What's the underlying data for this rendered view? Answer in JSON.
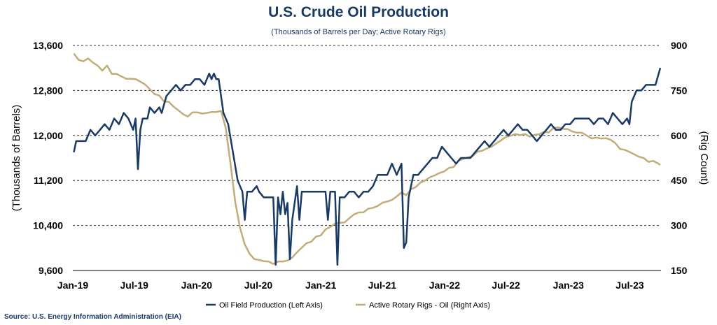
{
  "chart_data": {
    "type": "line",
    "title": "U.S. Crude Oil Production",
    "subtitle": "(Thousands of Barrels per Day; Active Rotary Rigs)",
    "ylabel_left": "(Thousands of Barrels)",
    "ylabel_right": "(Rig Count)",
    "ylim_left": [
      9600,
      13600
    ],
    "ylim_right": [
      150,
      900
    ],
    "yticks_left": [
      "13,600",
      "12,800",
      "12,000",
      "11,200",
      "10,400",
      "9,600"
    ],
    "yticks_right": [
      "900",
      "750",
      "600",
      "450",
      "300",
      "150"
    ],
    "xticks": [
      "Jan-19",
      "Jul-19",
      "Jan-20",
      "Jul-20",
      "Jan-21",
      "Jul-21",
      "Jan-22",
      "Jul-22",
      "Jan-23",
      "Jul-23"
    ],
    "grid": "horizontal dashed",
    "legend_position": "bottom",
    "source": "Source: U.S. Energy Information Administration (EIA)",
    "series": [
      {
        "name": "Oil Field Production (Left Axis)",
        "axis": "left",
        "color": "#1a3a66",
        "points": [
          [
            "2019-01-04",
            11700
          ],
          [
            "2019-01-11",
            11900
          ],
          [
            "2019-01-25",
            11900
          ],
          [
            "2019-02-08",
            11900
          ],
          [
            "2019-02-22",
            12100
          ],
          [
            "2019-03-08",
            12000
          ],
          [
            "2019-03-22",
            12100
          ],
          [
            "2019-04-05",
            12200
          ],
          [
            "2019-04-19",
            12100
          ],
          [
            "2019-05-03",
            12300
          ],
          [
            "2019-05-17",
            12200
          ],
          [
            "2019-05-31",
            12400
          ],
          [
            "2019-06-14",
            12300
          ],
          [
            "2019-06-28",
            12100
          ],
          [
            "2019-07-05",
            12300
          ],
          [
            "2019-07-12",
            11400
          ],
          [
            "2019-07-19",
            12100
          ],
          [
            "2019-07-26",
            12300
          ],
          [
            "2019-08-09",
            12300
          ],
          [
            "2019-08-16",
            12500
          ],
          [
            "2019-08-30",
            12400
          ],
          [
            "2019-09-13",
            12500
          ],
          [
            "2019-09-20",
            12400
          ],
          [
            "2019-10-04",
            12700
          ],
          [
            "2019-10-18",
            12800
          ],
          [
            "2019-11-01",
            12900
          ],
          [
            "2019-11-15",
            12800
          ],
          [
            "2019-11-29",
            12900
          ],
          [
            "2019-12-13",
            12900
          ],
          [
            "2019-12-27",
            13000
          ],
          [
            "2020-01-10",
            13000
          ],
          [
            "2020-01-24",
            12900
          ],
          [
            "2020-02-07",
            13100
          ],
          [
            "2020-02-14",
            13000
          ],
          [
            "2020-02-21",
            13100
          ],
          [
            "2020-02-28",
            13000
          ],
          [
            "2020-03-06",
            13000
          ],
          [
            "2020-03-20",
            12400
          ],
          [
            "2020-04-03",
            12200
          ],
          [
            "2020-04-17",
            11700
          ],
          [
            "2020-05-01",
            11200
          ],
          [
            "2020-05-15",
            11000
          ],
          [
            "2020-05-22",
            10500
          ],
          [
            "2020-05-29",
            11000
          ],
          [
            "2020-06-12",
            11000
          ],
          [
            "2020-06-26",
            11100
          ],
          [
            "2020-07-03",
            11000
          ],
          [
            "2020-07-17",
            10900
          ],
          [
            "2020-07-31",
            10900
          ],
          [
            "2020-08-14",
            10900
          ],
          [
            "2020-08-21",
            9700
          ],
          [
            "2020-08-28",
            10900
          ],
          [
            "2020-09-04",
            10600
          ],
          [
            "2020-09-11",
            11000
          ],
          [
            "2020-09-18",
            10600
          ],
          [
            "2020-09-25",
            10800
          ],
          [
            "2020-10-02",
            9800
          ],
          [
            "2020-10-09",
            10500
          ],
          [
            "2020-10-16",
            10800
          ],
          [
            "2020-10-23",
            11100
          ],
          [
            "2020-10-30",
            10500
          ],
          [
            "2020-11-06",
            11000
          ],
          [
            "2020-11-20",
            11000
          ],
          [
            "2020-12-04",
            11000
          ],
          [
            "2020-12-18",
            11000
          ],
          [
            "2021-01-01",
            11000
          ],
          [
            "2021-01-15",
            11000
          ],
          [
            "2021-01-22",
            10500
          ],
          [
            "2021-01-29",
            11000
          ],
          [
            "2021-02-12",
            11000
          ],
          [
            "2021-02-19",
            9700
          ],
          [
            "2021-02-26",
            10900
          ],
          [
            "2021-03-12",
            10900
          ],
          [
            "2021-03-26",
            11000
          ],
          [
            "2021-04-09",
            11000
          ],
          [
            "2021-04-23",
            10900
          ],
          [
            "2021-05-07",
            11000
          ],
          [
            "2021-05-21",
            11000
          ],
          [
            "2021-06-04",
            11100
          ],
          [
            "2021-06-18",
            11300
          ],
          [
            "2021-07-02",
            11300
          ],
          [
            "2021-07-16",
            11300
          ],
          [
            "2021-07-30",
            11500
          ],
          [
            "2021-08-13",
            11300
          ],
          [
            "2021-08-27",
            11500
          ],
          [
            "2021-09-03",
            10000
          ],
          [
            "2021-09-10",
            10100
          ],
          [
            "2021-09-17",
            10900
          ],
          [
            "2021-10-01",
            11300
          ],
          [
            "2021-10-15",
            11300
          ],
          [
            "2021-10-29",
            11400
          ],
          [
            "2021-11-12",
            11500
          ],
          [
            "2021-11-26",
            11600
          ],
          [
            "2021-12-10",
            11600
          ],
          [
            "2021-12-24",
            11800
          ],
          [
            "2022-01-07",
            11700
          ],
          [
            "2022-01-21",
            11600
          ],
          [
            "2022-02-04",
            11500
          ],
          [
            "2022-02-18",
            11600
          ],
          [
            "2022-03-04",
            11600
          ],
          [
            "2022-03-18",
            11600
          ],
          [
            "2022-04-01",
            11700
          ],
          [
            "2022-04-15",
            11800
          ],
          [
            "2022-04-29",
            11900
          ],
          [
            "2022-05-13",
            11800
          ],
          [
            "2022-05-27",
            11900
          ],
          [
            "2022-06-10",
            12000
          ],
          [
            "2022-06-24",
            12100
          ],
          [
            "2022-07-08",
            12000
          ],
          [
            "2022-07-22",
            12100
          ],
          [
            "2022-08-05",
            12200
          ],
          [
            "2022-08-19",
            12100
          ],
          [
            "2022-09-02",
            12100
          ],
          [
            "2022-09-16",
            12000
          ],
          [
            "2022-09-30",
            11900
          ],
          [
            "2022-10-14",
            12000
          ],
          [
            "2022-10-28",
            12100
          ],
          [
            "2022-11-11",
            12200
          ],
          [
            "2022-11-25",
            12100
          ],
          [
            "2022-12-09",
            12100
          ],
          [
            "2022-12-23",
            12200
          ],
          [
            "2023-01-06",
            12200
          ],
          [
            "2023-01-20",
            12300
          ],
          [
            "2023-02-03",
            12300
          ],
          [
            "2023-02-17",
            12300
          ],
          [
            "2023-03-03",
            12300
          ],
          [
            "2023-03-17",
            12200
          ],
          [
            "2023-03-31",
            12300
          ],
          [
            "2023-04-14",
            12300
          ],
          [
            "2023-04-28",
            12200
          ],
          [
            "2023-05-12",
            12400
          ],
          [
            "2023-05-26",
            12300
          ],
          [
            "2023-06-09",
            12200
          ],
          [
            "2023-06-23",
            12300
          ],
          [
            "2023-06-30",
            12200
          ],
          [
            "2023-07-07",
            12600
          ],
          [
            "2023-07-21",
            12800
          ],
          [
            "2023-08-04",
            12800
          ],
          [
            "2023-08-18",
            12900
          ],
          [
            "2023-09-01",
            12900
          ],
          [
            "2023-09-15",
            12900
          ],
          [
            "2023-09-29",
            13200
          ]
        ]
      },
      {
        "name": "Active Rotary Rigs - Oil (Right Axis)",
        "axis": "right",
        "color": "#c2ad7a",
        "points": [
          [
            "2019-01-04",
            873
          ],
          [
            "2019-01-18",
            852
          ],
          [
            "2019-02-01",
            847
          ],
          [
            "2019-02-15",
            857
          ],
          [
            "2019-03-01",
            843
          ],
          [
            "2019-03-15",
            833
          ],
          [
            "2019-03-29",
            816
          ],
          [
            "2019-04-12",
            833
          ],
          [
            "2019-04-26",
            805
          ],
          [
            "2019-05-10",
            805
          ],
          [
            "2019-05-24",
            797
          ],
          [
            "2019-06-07",
            789
          ],
          [
            "2019-06-21",
            789
          ],
          [
            "2019-07-05",
            788
          ],
          [
            "2019-07-19",
            779
          ],
          [
            "2019-08-02",
            770
          ],
          [
            "2019-08-16",
            754
          ],
          [
            "2019-08-30",
            738
          ],
          [
            "2019-09-13",
            733
          ],
          [
            "2019-09-27",
            713
          ],
          [
            "2019-10-11",
            712
          ],
          [
            "2019-10-25",
            696
          ],
          [
            "2019-11-08",
            684
          ],
          [
            "2019-11-22",
            671
          ],
          [
            "2019-12-06",
            663
          ],
          [
            "2019-12-20",
            677
          ],
          [
            "2020-01-03",
            677
          ],
          [
            "2020-01-17",
            673
          ],
          [
            "2020-01-31",
            675
          ],
          [
            "2020-02-14",
            678
          ],
          [
            "2020-02-28",
            678
          ],
          [
            "2020-03-13",
            682
          ],
          [
            "2020-03-27",
            624
          ],
          [
            "2020-04-10",
            504
          ],
          [
            "2020-04-24",
            378
          ],
          [
            "2020-05-08",
            292
          ],
          [
            "2020-05-22",
            237
          ],
          [
            "2020-06-05",
            206
          ],
          [
            "2020-06-19",
            188
          ],
          [
            "2020-07-03",
            185
          ],
          [
            "2020-07-17",
            181
          ],
          [
            "2020-07-31",
            180
          ],
          [
            "2020-08-14",
            172
          ],
          [
            "2020-08-28",
            180
          ],
          [
            "2020-09-11",
            180
          ],
          [
            "2020-09-25",
            183
          ],
          [
            "2020-10-09",
            193
          ],
          [
            "2020-10-23",
            211
          ],
          [
            "2020-11-06",
            226
          ],
          [
            "2020-11-20",
            241
          ],
          [
            "2020-12-04",
            246
          ],
          [
            "2020-12-18",
            263
          ],
          [
            "2021-01-01",
            267
          ],
          [
            "2021-01-15",
            287
          ],
          [
            "2021-01-29",
            295
          ],
          [
            "2021-02-12",
            306
          ],
          [
            "2021-02-26",
            309
          ],
          [
            "2021-03-12",
            310
          ],
          [
            "2021-03-26",
            324
          ],
          [
            "2021-04-09",
            337
          ],
          [
            "2021-04-23",
            343
          ],
          [
            "2021-05-07",
            344
          ],
          [
            "2021-05-21",
            356
          ],
          [
            "2021-06-04",
            359
          ],
          [
            "2021-06-18",
            365
          ],
          [
            "2021-07-02",
            376
          ],
          [
            "2021-07-16",
            380
          ],
          [
            "2021-07-30",
            385
          ],
          [
            "2021-08-13",
            397
          ],
          [
            "2021-08-27",
            410
          ],
          [
            "2021-09-10",
            401
          ],
          [
            "2021-09-24",
            421
          ],
          [
            "2021-10-08",
            428
          ],
          [
            "2021-10-22",
            443
          ],
          [
            "2021-11-05",
            450
          ],
          [
            "2021-11-19",
            461
          ],
          [
            "2021-12-03",
            467
          ],
          [
            "2021-12-17",
            475
          ],
          [
            "2021-12-31",
            480
          ],
          [
            "2022-01-14",
            492
          ],
          [
            "2022-01-28",
            495
          ],
          [
            "2022-02-11",
            516
          ],
          [
            "2022-02-25",
            522
          ],
          [
            "2022-03-11",
            527
          ],
          [
            "2022-03-25",
            531
          ],
          [
            "2022-04-08",
            546
          ],
          [
            "2022-04-22",
            549
          ],
          [
            "2022-05-06",
            557
          ],
          [
            "2022-05-20",
            563
          ],
          [
            "2022-06-03",
            574
          ],
          [
            "2022-06-17",
            584
          ],
          [
            "2022-07-01",
            595
          ],
          [
            "2022-07-15",
            599
          ],
          [
            "2022-07-29",
            605
          ],
          [
            "2022-08-12",
            601
          ],
          [
            "2022-08-26",
            605
          ],
          [
            "2022-09-09",
            596
          ],
          [
            "2022-09-23",
            602
          ],
          [
            "2022-10-07",
            604
          ],
          [
            "2022-10-21",
            612
          ],
          [
            "2022-11-04",
            610
          ],
          [
            "2022-11-18",
            625
          ],
          [
            "2022-12-02",
            627
          ],
          [
            "2022-12-16",
            622
          ],
          [
            "2022-12-30",
            621
          ],
          [
            "2023-01-13",
            613
          ],
          [
            "2023-01-27",
            609
          ],
          [
            "2023-02-10",
            609
          ],
          [
            "2023-02-24",
            600
          ],
          [
            "2023-03-10",
            590
          ],
          [
            "2023-03-24",
            593
          ],
          [
            "2023-04-07",
            590
          ],
          [
            "2023-04-21",
            591
          ],
          [
            "2023-05-05",
            586
          ],
          [
            "2023-05-19",
            575
          ],
          [
            "2023-06-02",
            555
          ],
          [
            "2023-06-16",
            552
          ],
          [
            "2023-06-30",
            545
          ],
          [
            "2023-07-14",
            537
          ],
          [
            "2023-07-28",
            529
          ],
          [
            "2023-08-11",
            525
          ],
          [
            "2023-08-25",
            512
          ],
          [
            "2023-09-08",
            515
          ],
          [
            "2023-09-22",
            507
          ],
          [
            "2023-09-29",
            502
          ]
        ]
      }
    ]
  }
}
